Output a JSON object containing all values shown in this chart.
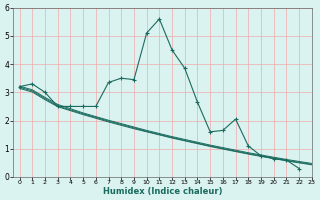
{
  "xlabel": "Humidex (Indice chaleur)",
  "x": [
    0,
    1,
    2,
    3,
    4,
    5,
    6,
    7,
    8,
    9,
    10,
    11,
    12,
    13,
    14,
    15,
    16,
    17,
    18,
    19,
    20,
    21,
    22,
    23
  ],
  "line_main": [
    3.2,
    3.3,
    3.0,
    2.5,
    2.5,
    2.5,
    2.5,
    3.35,
    3.5,
    3.45,
    5.1,
    5.6,
    4.5,
    3.85,
    2.65,
    1.6,
    1.65,
    2.05,
    1.1,
    0.75,
    0.65,
    0.6,
    0.3,
    null
  ],
  "line_trend1": [
    3.18,
    3.05,
    2.78,
    2.52,
    2.38,
    2.24,
    2.11,
    1.98,
    1.86,
    1.74,
    1.62,
    1.51,
    1.4,
    1.3,
    1.2,
    1.1,
    1.01,
    0.92,
    0.83,
    0.75,
    0.67,
    0.59,
    0.52,
    0.45
  ],
  "line_trend2": [
    3.22,
    3.09,
    2.82,
    2.57,
    2.42,
    2.27,
    2.14,
    2.01,
    1.89,
    1.77,
    1.65,
    1.54,
    1.43,
    1.33,
    1.23,
    1.13,
    1.04,
    0.95,
    0.86,
    0.78,
    0.7,
    0.62,
    0.55,
    0.48
  ],
  "line_trend3": [
    3.14,
    3.01,
    2.74,
    2.49,
    2.35,
    2.21,
    2.08,
    1.95,
    1.83,
    1.71,
    1.6,
    1.49,
    1.38,
    1.28,
    1.18,
    1.08,
    0.99,
    0.9,
    0.81,
    0.73,
    0.65,
    0.57,
    0.5,
    0.43
  ],
  "line_color": "#1a6b5e",
  "bg_color": "#daf2f0",
  "grid_color_v": "#f0aaaa",
  "grid_color_h": "#f0aaaa",
  "ylim": [
    0,
    6
  ],
  "xlim": [
    -0.5,
    23
  ],
  "yticks": [
    0,
    1,
    2,
    3,
    4,
    5,
    6
  ],
  "xticks": [
    0,
    1,
    2,
    3,
    4,
    5,
    6,
    7,
    8,
    9,
    10,
    11,
    12,
    13,
    14,
    15,
    16,
    17,
    18,
    19,
    20,
    21,
    22,
    23
  ]
}
